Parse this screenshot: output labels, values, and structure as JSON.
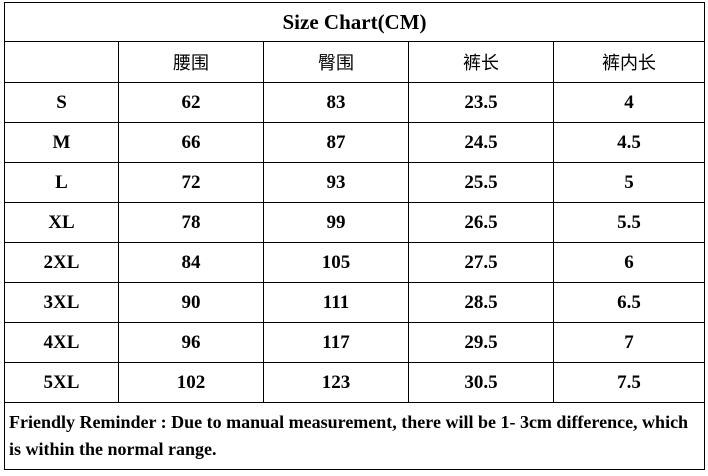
{
  "title": "Size Chart(CM)",
  "table": {
    "header": [
      "腰围",
      "臀围",
      "裤长",
      "裤内长"
    ],
    "rows": [
      [
        "S",
        62,
        83,
        23.5,
        4
      ],
      [
        "M",
        66,
        87,
        24.5,
        4.5
      ],
      [
        "L",
        72,
        93,
        25.5,
        5
      ],
      [
        "XL",
        78,
        99,
        26.5,
        5.5
      ],
      [
        "2XL",
        84,
        105,
        27.5,
        6
      ],
      [
        "3XL",
        90,
        111,
        28.5,
        6.5
      ],
      [
        "4XL",
        96,
        117,
        29.5,
        7
      ],
      [
        "5XL",
        102,
        123,
        30.5,
        7.5
      ]
    ]
  },
  "footer": "Friendly Reminder : Due to manual measurement, there will be 1- 3cm difference, which is within the normal range."
}
